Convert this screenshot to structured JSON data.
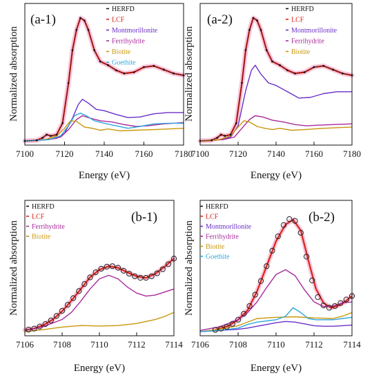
{
  "colors": {
    "HERFD": "#111111",
    "LCF": "#d82418",
    "Montmorillonite": "#6a2fc8",
    "Ferrihydrite": "#a8299a",
    "Biotite": "#c8960a",
    "Goethite": "#2ea6dc",
    "halo": "#f6b6d6"
  },
  "chart_data": [
    {
      "panel": "(a-1)",
      "type": "line",
      "xlabel": "Energy (eV)",
      "ylabel": "Normalized absorption",
      "xlim": [
        7100,
        7180
      ],
      "xticks": [
        "7100",
        "7120",
        "7140",
        "7160",
        "7180"
      ],
      "legend_position": "top-right",
      "legend": [
        "HERFD",
        "LCF",
        "Montmorillonite",
        "Ferrihydrite",
        "Biotite",
        "Goethite"
      ],
      "series": [
        {
          "name": "HERFD",
          "style": "markers",
          "x": [
            7100,
            7106,
            7109,
            7111,
            7113,
            7116,
            7119,
            7122,
            7124,
            7126,
            7128,
            7130,
            7132,
            7135,
            7138,
            7142,
            7146,
            7150,
            7155,
            7160,
            7165,
            7170,
            7175,
            7180
          ],
          "y": [
            0.0,
            0.005,
            0.025,
            0.05,
            0.04,
            0.05,
            0.14,
            0.46,
            0.72,
            0.88,
            0.975,
            0.955,
            0.88,
            0.72,
            0.63,
            0.6,
            0.56,
            0.535,
            0.545,
            0.585,
            0.595,
            0.565,
            0.535,
            0.52
          ]
        },
        {
          "name": "LCF",
          "style": "line",
          "x": [
            7100,
            7106,
            7109,
            7111,
            7113,
            7116,
            7119,
            7122,
            7124,
            7126,
            7128,
            7130,
            7132,
            7135,
            7138,
            7142,
            7146,
            7150,
            7155,
            7160,
            7165,
            7170,
            7175,
            7180
          ],
          "y": [
            0.0,
            0.005,
            0.025,
            0.05,
            0.04,
            0.05,
            0.14,
            0.46,
            0.72,
            0.88,
            0.975,
            0.955,
            0.88,
            0.72,
            0.63,
            0.6,
            0.56,
            0.535,
            0.545,
            0.585,
            0.595,
            0.565,
            0.535,
            0.52
          ]
        },
        {
          "name": "Montmorillonite",
          "style": "line",
          "x": [
            7100,
            7110,
            7116,
            7120,
            7124,
            7127,
            7129,
            7132,
            7136,
            7140,
            7146,
            7152,
            7158,
            7165,
            7172,
            7180
          ],
          "y": [
            0.0,
            0.01,
            0.02,
            0.06,
            0.18,
            0.29,
            0.33,
            0.3,
            0.25,
            0.24,
            0.21,
            0.185,
            0.19,
            0.215,
            0.225,
            0.225
          ]
        },
        {
          "name": "Ferrihydrite",
          "style": "line",
          "x": [
            7100,
            7112,
            7118,
            7122,
            7126,
            7129,
            7133,
            7138,
            7144,
            7150,
            7156,
            7162,
            7170,
            7180
          ],
          "y": [
            0.0,
            0.01,
            0.03,
            0.09,
            0.17,
            0.2,
            0.18,
            0.16,
            0.15,
            0.13,
            0.115,
            0.12,
            0.135,
            0.145
          ]
        },
        {
          "name": "Biotite",
          "style": "line",
          "x": [
            7100,
            7110,
            7116,
            7120,
            7123,
            7126,
            7130,
            7134,
            7138,
            7142,
            7148,
            7155,
            7165,
            7180
          ],
          "y": [
            0.0,
            0.01,
            0.04,
            0.1,
            0.16,
            0.155,
            0.11,
            0.1,
            0.085,
            0.095,
            0.08,
            0.085,
            0.09,
            0.1
          ]
        },
        {
          "name": "Goethite",
          "style": "line",
          "x": [
            7100,
            7112,
            7118,
            7122,
            7125,
            7128,
            7131,
            7135,
            7140,
            7146,
            7152,
            7158,
            7165,
            7172,
            7180
          ],
          "y": [
            0.0,
            0.01,
            0.04,
            0.12,
            0.2,
            0.22,
            0.2,
            0.16,
            0.14,
            0.12,
            0.1,
            0.115,
            0.135,
            0.14,
            0.14
          ]
        }
      ]
    },
    {
      "panel": "(a-2)",
      "type": "line",
      "xlabel": "Energy (eV)",
      "ylabel": "Normalized absorption",
      "xlim": [
        7100,
        7180
      ],
      "xticks": [
        "7100",
        "7120",
        "7140",
        "7160",
        "7180"
      ],
      "legend_position": "top-right",
      "legend": [
        "HERFD",
        "LCF",
        "Montmorillonite",
        "Ferrihydrite",
        "Biotite"
      ],
      "series": [
        {
          "name": "HERFD",
          "style": "markers",
          "x": [
            7100,
            7106,
            7109,
            7111,
            7113,
            7116,
            7119,
            7122,
            7124,
            7126,
            7128,
            7130,
            7132,
            7135,
            7138,
            7142,
            7146,
            7150,
            7155,
            7160,
            7165,
            7170,
            7175,
            7180
          ],
          "y": [
            0.0,
            0.005,
            0.025,
            0.05,
            0.04,
            0.05,
            0.14,
            0.46,
            0.72,
            0.88,
            0.975,
            0.955,
            0.88,
            0.72,
            0.63,
            0.6,
            0.56,
            0.535,
            0.545,
            0.585,
            0.595,
            0.565,
            0.535,
            0.52
          ]
        },
        {
          "name": "LCF",
          "style": "line",
          "x": [
            7100,
            7106,
            7109,
            7111,
            7113,
            7116,
            7119,
            7122,
            7124,
            7126,
            7128,
            7130,
            7132,
            7135,
            7138,
            7142,
            7146,
            7150,
            7155,
            7160,
            7165,
            7170,
            7175,
            7180
          ],
          "y": [
            0.0,
            0.005,
            0.025,
            0.05,
            0.04,
            0.05,
            0.14,
            0.46,
            0.72,
            0.88,
            0.975,
            0.955,
            0.88,
            0.72,
            0.63,
            0.6,
            0.56,
            0.535,
            0.545,
            0.585,
            0.595,
            0.565,
            0.535,
            0.52
          ]
        },
        {
          "name": "Montmorillonite",
          "style": "line",
          "x": [
            7100,
            7110,
            7116,
            7120,
            7124,
            7127,
            7129,
            7132,
            7136,
            7140,
            7146,
            7152,
            7158,
            7165,
            7172,
            7180
          ],
          "y": [
            0.0,
            0.01,
            0.03,
            0.12,
            0.4,
            0.56,
            0.6,
            0.53,
            0.46,
            0.44,
            0.39,
            0.34,
            0.345,
            0.375,
            0.39,
            0.39
          ]
        },
        {
          "name": "Ferrihydrite",
          "style": "line",
          "x": [
            7100,
            7112,
            7118,
            7122,
            7126,
            7129,
            7133,
            7138,
            7144,
            7150,
            7156,
            7162,
            7170,
            7180
          ],
          "y": [
            0.0,
            0.01,
            0.03,
            0.1,
            0.17,
            0.2,
            0.19,
            0.165,
            0.15,
            0.13,
            0.12,
            0.125,
            0.13,
            0.135
          ]
        },
        {
          "name": "Biotite",
          "style": "line",
          "x": [
            7100,
            7110,
            7116,
            7120,
            7123,
            7126,
            7130,
            7134,
            7138,
            7142,
            7148,
            7155,
            7165,
            7180
          ],
          "y": [
            0.0,
            0.01,
            0.04,
            0.11,
            0.16,
            0.15,
            0.115,
            0.1,
            0.09,
            0.1,
            0.085,
            0.09,
            0.1,
            0.11
          ]
        }
      ]
    },
    {
      "panel": "(b-1)",
      "type": "line",
      "xlabel": "Energy (eV)",
      "ylabel": "Normalized absorption",
      "xlim": [
        7106,
        7114
      ],
      "xticks": [
        "7106",
        "7108",
        "7110",
        "7112",
        "7114"
      ],
      "legend_position": "top-left",
      "legend": [
        "HERFD",
        "LCF",
        "Ferrihydrite",
        "Biotite"
      ],
      "series": [
        {
          "name": "HERFD",
          "style": "markers",
          "x": [
            7106.2,
            7106.5,
            7106.8,
            7107.1,
            7107.4,
            7107.7,
            7108.0,
            7108.3,
            7108.6,
            7108.9,
            7109.2,
            7109.5,
            7109.8,
            7110.1,
            7110.4,
            7110.7,
            7111.0,
            7111.3,
            7111.6,
            7111.9,
            7112.2,
            7112.5,
            7112.8,
            7113.1,
            7113.4,
            7113.7,
            7114.0
          ],
          "y": [
            0.02,
            0.03,
            0.05,
            0.075,
            0.11,
            0.155,
            0.205,
            0.265,
            0.33,
            0.4,
            0.47,
            0.535,
            0.585,
            0.62,
            0.64,
            0.645,
            0.63,
            0.6,
            0.57,
            0.545,
            0.53,
            0.53,
            0.545,
            0.575,
            0.615,
            0.665,
            0.72
          ]
        },
        {
          "name": "LCF",
          "style": "line",
          "x": [
            7106.0,
            7106.5,
            7107.0,
            7107.5,
            7108.0,
            7108.5,
            7109.0,
            7109.5,
            7110.0,
            7110.5,
            7111.0,
            7111.5,
            7112.0,
            7112.5,
            7113.0,
            7113.5,
            7114.0
          ],
          "y": [
            0.015,
            0.03,
            0.065,
            0.12,
            0.2,
            0.305,
            0.42,
            0.535,
            0.61,
            0.645,
            0.63,
            0.585,
            0.545,
            0.53,
            0.57,
            0.64,
            0.72
          ]
        },
        {
          "name": "Ferrihydrite",
          "style": "line",
          "x": [
            7106.0,
            7107.0,
            7108.0,
            7108.5,
            7109.0,
            7109.5,
            7110.0,
            7110.5,
            7111.0,
            7111.5,
            7112.0,
            7112.5,
            7113.0,
            7113.5,
            7114.0
          ],
          "y": [
            0.01,
            0.05,
            0.12,
            0.19,
            0.3,
            0.42,
            0.52,
            0.555,
            0.52,
            0.44,
            0.38,
            0.35,
            0.36,
            0.39,
            0.42
          ]
        },
        {
          "name": "Biotite",
          "style": "line",
          "x": [
            7106.0,
            7107.0,
            7108.0,
            7109.0,
            7110.0,
            7111.0,
            7112.0,
            7113.0,
            7113.5,
            7114.0
          ],
          "y": [
            0.0,
            0.02,
            0.045,
            0.06,
            0.055,
            0.06,
            0.08,
            0.12,
            0.15,
            0.19
          ]
        }
      ]
    },
    {
      "panel": "(b-2)",
      "type": "line",
      "xlabel": "Energy (eV)",
      "ylabel": "Normalized absorption",
      "xlim": [
        7106,
        7114
      ],
      "xticks": [
        "7106",
        "7108",
        "7110",
        "7112",
        "7114"
      ],
      "legend_position": "top-left",
      "legend": [
        "HERFD",
        "LCF",
        "Montmorillonite",
        "Ferrihydrite",
        "Biotite",
        "Goethite"
      ],
      "series": [
        {
          "name": "HERFD",
          "style": "markers",
          "x": [
            7106.8,
            7107.1,
            7107.4,
            7107.7,
            7108.0,
            7108.3,
            7108.6,
            7108.9,
            7109.2,
            7109.5,
            7109.8,
            7110.1,
            7110.4,
            7110.7,
            7111.0,
            7111.3,
            7111.6,
            7111.9,
            7112.2,
            7112.5,
            7112.8,
            7113.1,
            7113.4,
            7113.7,
            7114.0
          ],
          "y": [
            0.015,
            0.025,
            0.04,
            0.065,
            0.1,
            0.15,
            0.215,
            0.31,
            0.425,
            0.55,
            0.68,
            0.8,
            0.895,
            0.945,
            0.93,
            0.83,
            0.63,
            0.43,
            0.29,
            0.22,
            0.2,
            0.215,
            0.24,
            0.27,
            0.3
          ]
        },
        {
          "name": "LCF",
          "style": "line",
          "x": [
            7106.8,
            7107.5,
            7108.0,
            7108.5,
            7109.0,
            7109.5,
            7110.0,
            7110.5,
            7110.9,
            7111.3,
            7111.7,
            7112.1,
            7112.5,
            7112.9,
            7113.3,
            7113.7,
            7114.0
          ],
          "y": [
            0.015,
            0.05,
            0.1,
            0.18,
            0.34,
            0.55,
            0.76,
            0.9,
            0.94,
            0.85,
            0.6,
            0.36,
            0.24,
            0.2,
            0.22,
            0.26,
            0.3
          ]
        },
        {
          "name": "Montmorillonite",
          "style": "line",
          "x": [
            7106.0,
            7107.0,
            7108.0,
            7108.5,
            7109.0,
            7109.5,
            7110.0,
            7110.5,
            7111.0,
            7111.5,
            7112.0,
            7112.5,
            7113.0,
            7113.5,
            7114.0
          ],
          "y": [
            0.0,
            0.01,
            0.02,
            0.03,
            0.045,
            0.06,
            0.075,
            0.085,
            0.08,
            0.065,
            0.05,
            0.045,
            0.045,
            0.05,
            0.055
          ]
        },
        {
          "name": "Ferrihydrite",
          "style": "line",
          "x": [
            7106.0,
            7107.0,
            7108.0,
            7108.5,
            7109.0,
            7109.5,
            7110.0,
            7110.5,
            7111.0,
            7111.5,
            7112.0,
            7112.5,
            7113.0,
            7113.5,
            7114.0
          ],
          "y": [
            0.01,
            0.04,
            0.1,
            0.16,
            0.25,
            0.37,
            0.48,
            0.52,
            0.47,
            0.35,
            0.25,
            0.21,
            0.215,
            0.24,
            0.25
          ]
        },
        {
          "name": "Biotite",
          "style": "line",
          "x": [
            7106.0,
            7107.0,
            7108.0,
            7109.0,
            7110.0,
            7111.0,
            7112.0,
            7113.0,
            7113.5,
            7114.0
          ],
          "y": [
            0.0,
            0.02,
            0.05,
            0.11,
            0.12,
            0.125,
            0.115,
            0.11,
            0.13,
            0.16
          ]
        },
        {
          "name": "Goethite",
          "style": "line",
          "x": [
            7106.0,
            7107.0,
            7108.0,
            7108.5,
            7109.0,
            7109.5,
            7110.0,
            7110.5,
            7110.9,
            7111.3,
            7111.7,
            7112.1,
            7112.5,
            7113.0,
            7113.5,
            7114.0
          ],
          "y": [
            0.0,
            0.01,
            0.03,
            0.06,
            0.08,
            0.09,
            0.1,
            0.13,
            0.2,
            0.16,
            0.11,
            0.1,
            0.1,
            0.1,
            0.11,
            0.12
          ]
        }
      ]
    }
  ]
}
